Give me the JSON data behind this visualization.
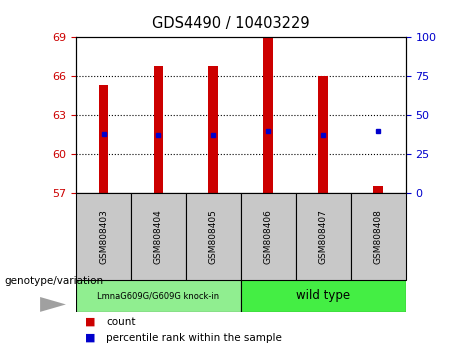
{
  "title": "GDS4490 / 10403229",
  "samples": [
    "GSM808403",
    "GSM808404",
    "GSM808405",
    "GSM808406",
    "GSM808407",
    "GSM808408"
  ],
  "bar_tops": [
    65.3,
    66.75,
    66.75,
    69.0,
    66.0,
    57.5
  ],
  "bar_bottom": 57,
  "percentile_values": [
    61.55,
    61.45,
    61.45,
    61.8,
    61.5,
    61.8
  ],
  "ylim_left": [
    57,
    69
  ],
  "ylim_right": [
    0,
    100
  ],
  "yticks_left": [
    57,
    60,
    63,
    66,
    69
  ],
  "yticks_right": [
    0,
    25,
    50,
    75,
    100
  ],
  "bar_color": "#cc0000",
  "percentile_color": "#0000cc",
  "group1_label": "LmnaG609G/G609G knock-in",
  "group2_label": "wild type",
  "group1_color": "#90ee90",
  "group2_color": "#44ee44",
  "group1_indices": [
    0,
    1,
    2
  ],
  "group2_indices": [
    3,
    4,
    5
  ],
  "legend_count_label": "count",
  "legend_pct_label": "percentile rank within the sample",
  "genotype_label": "genotype/variation",
  "bar_width": 0.18,
  "left_tick_color": "#cc0000",
  "right_tick_color": "#0000cc",
  "label_box_color": "#c8c8c8",
  "arrow_color": "#a0a0a0"
}
